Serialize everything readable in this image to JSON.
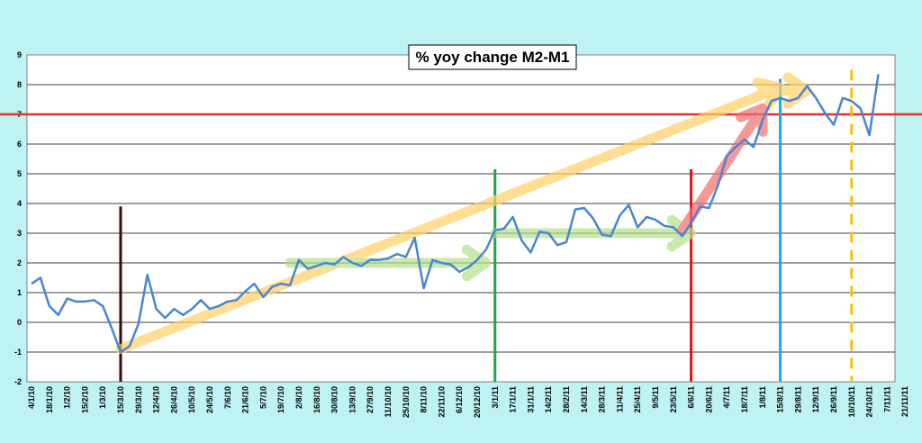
{
  "chart_data": {
    "type": "line",
    "title": "% yoy change M2-M1",
    "xlabel": "",
    "ylabel": "",
    "ylim": [
      -2,
      9
    ],
    "yticks": [
      -2,
      -1,
      0,
      1,
      2,
      3,
      4,
      5,
      6,
      7,
      8,
      9
    ],
    "grid": true,
    "legend": "none",
    "x_tick_labels": [
      "4/1/10",
      "18/1/10",
      "1/2/10",
      "15/2/10",
      "1/3/10",
      "15/3/10",
      "29/3/10",
      "12/4/10",
      "26/4/10",
      "10/5/10",
      "24/5/10",
      "7/6/10",
      "21/6/10",
      "5/7/10",
      "19/7/10",
      "2/8/10",
      "16/8/10",
      "30/8/10",
      "13/9/10",
      "27/9/10",
      "11/10/10",
      "25/10/10",
      "8/11/10",
      "22/11/10",
      "6/12/10",
      "20/12/10",
      "3/1/11",
      "17/1/11",
      "31/1/11",
      "14/2/11",
      "28/2/11",
      "14/3/11",
      "28/3/11",
      "11/4/11",
      "25/4/11",
      "9/5/11",
      "23/5/11",
      "6/6/11",
      "20/6/11",
      "4/7/11",
      "18/7/11",
      "1/8/11",
      "15/8/11",
      "29/8/11",
      "12/9/11",
      "26/9/11",
      "10/10/11",
      "24/10/11",
      "7/11/11",
      "21/11/11"
    ],
    "series": [
      {
        "values": [
          1.3,
          1.5,
          0.55,
          0.25,
          0.8,
          0.7,
          0.7,
          0.75,
          0.55,
          -0.2,
          -1.0,
          -0.8,
          -0.05,
          1.6,
          0.45,
          0.15,
          0.45,
          0.25,
          0.45,
          0.75,
          0.45,
          0.55,
          0.7,
          0.75,
          1.05,
          1.3,
          0.85,
          1.2,
          1.3,
          1.25,
          2.1,
          1.8,
          1.9,
          2.0,
          1.95,
          2.2,
          2.0,
          1.9,
          2.1,
          2.1,
          2.15,
          2.3,
          2.2,
          2.85,
          1.15,
          2.1,
          2.0,
          1.95,
          1.7,
          1.85,
          2.1,
          2.45,
          3.1,
          3.15,
          3.55,
          2.75,
          2.35,
          3.05,
          3.0,
          2.6,
          2.7,
          3.8,
          3.85,
          3.5,
          2.95,
          2.9,
          3.6,
          3.95,
          3.2,
          3.55,
          3.45,
          3.25,
          3.2,
          2.9,
          3.35,
          3.9,
          3.85,
          4.6,
          5.6,
          5.9,
          6.15,
          5.9,
          6.8,
          7.45,
          7.55,
          7.45,
          7.55,
          7.95,
          7.55,
          7.05,
          6.65,
          7.55,
          7.45,
          7.2,
          6.3,
          8.35
        ],
        "color": "#4a86d0"
      }
    ],
    "reference_lines": [
      {
        "orientation": "horizontal",
        "y": 7,
        "color": "#e83030",
        "style": "solid"
      },
      {
        "orientation": "vertical",
        "x_label": "15/3/10",
        "color": "#3a0a0a",
        "style": "solid",
        "y_range": [
          -2,
          3.9
        ]
      },
      {
        "orientation": "vertical",
        "x_label": "3/1/11",
        "color": "#1aa84a",
        "style": "solid",
        "y_range": [
          -2,
          5.15
        ]
      },
      {
        "orientation": "vertical",
        "x_label": "6/6/11",
        "color": "#ee1111",
        "style": "solid",
        "y_range": [
          -2,
          5.15
        ]
      },
      {
        "orientation": "vertical",
        "x_label": "15/8/11",
        "color": "#19aaee",
        "style": "solid",
        "y_range": [
          -2,
          8.2
        ]
      },
      {
        "orientation": "vertical",
        "x_label": "10/10/11",
        "color": "#f5bf14",
        "style": "dashed",
        "y_range": [
          -2,
          8.5
        ]
      }
    ],
    "trend_arrows": [
      {
        "from": [
          10,
          -0.9
        ],
        "to": [
          84,
          7.9
        ],
        "color": "#ffd166"
      },
      {
        "from": [
          29,
          2.0
        ],
        "to": [
          51,
          2.0
        ],
        "color": "#b5e08a"
      },
      {
        "from": [
          52,
          3.0
        ],
        "to": [
          74,
          3.0
        ],
        "color": "#b5e08a"
      },
      {
        "from": [
          73,
          3.1
        ],
        "to": [
          82,
          7.2
        ],
        "color": "#f26d6d"
      },
      {
        "from": [
          82,
          7.8
        ],
        "to": [
          87,
          7.8
        ],
        "color": "#ffd166"
      }
    ]
  }
}
